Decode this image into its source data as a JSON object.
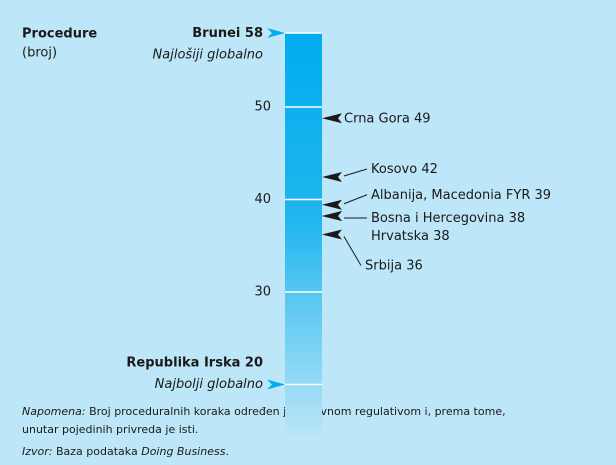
{
  "chart_data": {
    "type": "scale",
    "axis_label": "Procedure",
    "axis_unit": "(broj)",
    "ylim": [
      14,
      58
    ],
    "yticks": [
      30,
      40,
      50
    ],
    "grid": true,
    "bar_color": "#00aeef",
    "marker_color": "#1a1a1a",
    "extreme_color": "#00aeef",
    "extremes": [
      {
        "name": "Brunei",
        "value": 58,
        "note": "Najlošiji globalno"
      },
      {
        "name": "Republika Irska",
        "value": 20,
        "note": "Najbolji globalno"
      }
    ],
    "markers": [
      {
        "name": "Crna Gora",
        "value": 49
      },
      {
        "name": "Kosovo",
        "value": 42
      },
      {
        "name": "Albanija, Macedonia FYR",
        "value": 39
      },
      {
        "name": "Bosna i Hercegovina",
        "value": 38
      },
      {
        "name": "Hrvatska",
        "value": 38
      },
      {
        "name": "Srbija",
        "value": 36
      }
    ],
    "footnote": {
      "label": "Napomena:",
      "lines": [
        "Broj proceduralnih koraka određen je državnom regulativom i, prema tome,",
        "unutar pojedinih privreda je isti."
      ]
    },
    "source": {
      "label": "Izvor:",
      "text": "Baza podataka",
      "italic": "Doing Business",
      "end": "."
    }
  }
}
